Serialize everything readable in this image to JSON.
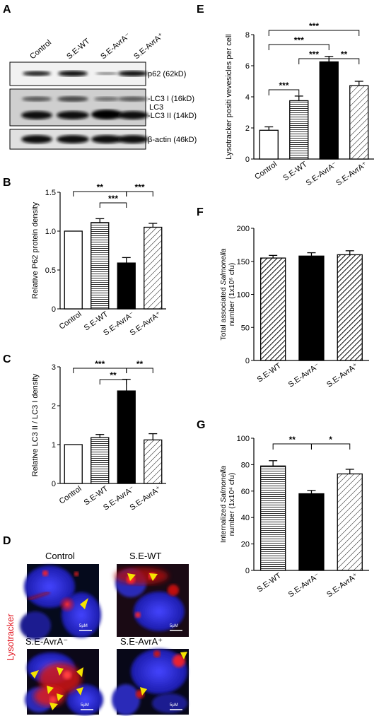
{
  "panels": {
    "A": "A",
    "B": "B",
    "C": "C",
    "D": "D",
    "E": "E",
    "F": "F",
    "G": "G"
  },
  "blot": {
    "lanes": [
      "Control",
      "S.E-WT",
      "S.E-AvrA⁻",
      "S.E-AvrA⁺"
    ],
    "p62": "p62 (62kD)",
    "lc3_i": "-LC3 I (16kD)",
    "lc3": "LC3",
    "lc3_ii": "-LC3 II (14kD)",
    "actin": "β-actin (46kD)"
  },
  "microscopy": {
    "side_label": "Lysotracker",
    "titles": [
      "Control",
      "S.E-WT",
      "S.E-AvrA⁻",
      "S.E-AvrA⁺"
    ],
    "scale": "5μM"
  },
  "chart_data": [
    {
      "id": "B",
      "type": "bar",
      "categories": [
        "Control",
        "S.E-WT",
        "S.E-AvrA⁻",
        "S.E-AvrA⁺"
      ],
      "values": [
        1.0,
        1.11,
        0.59,
        1.05
      ],
      "errors": [
        0,
        0.05,
        0.07,
        0.05
      ],
      "ylabel": "Relative P62 protein density",
      "ylim": [
        0,
        1.5
      ],
      "yticks": [
        "0",
        "0.5",
        "1.0",
        "1.5"
      ],
      "sig": [
        {
          "label": "**",
          "from": 0,
          "to": 2
        },
        {
          "label": "***",
          "from": 1,
          "to": 2
        },
        {
          "label": "***",
          "from": 2,
          "to": 3
        }
      ]
    },
    {
      "id": "C",
      "type": "bar",
      "categories": [
        "Control",
        "S.E-WT",
        "S.E-AvrA⁻",
        "S.E-AvrA⁺"
      ],
      "values": [
        1.0,
        1.18,
        2.38,
        1.12
      ],
      "errors": [
        0,
        0.08,
        0.3,
        0.16
      ],
      "ylabel": "Relative LC3 II / LC3 I density",
      "ylim": [
        0,
        3
      ],
      "yticks": [
        "0",
        "1",
        "2",
        "3"
      ],
      "sig": [
        {
          "label": "***",
          "from": 0,
          "to": 2
        },
        {
          "label": "**",
          "from": 1,
          "to": 2
        },
        {
          "label": "**",
          "from": 2,
          "to": 3
        }
      ]
    },
    {
      "id": "E",
      "type": "bar",
      "categories": [
        "Control",
        "S.E-WT",
        "S.E-AvrA⁻",
        "S.E-AvrA⁺"
      ],
      "values": [
        1.85,
        3.75,
        6.25,
        4.72
      ],
      "errors": [
        0.22,
        0.3,
        0.35,
        0.28
      ],
      "ylabel": "Lysotracker positi vevesicles per cell",
      "ylim": [
        0,
        8
      ],
      "yticks": [
        "0",
        "2",
        "4",
        "6",
        "8"
      ],
      "sig": [
        {
          "label": "***",
          "from": 0,
          "to": 1
        },
        {
          "label": "***",
          "from": 0,
          "to": 2
        },
        {
          "label": "***",
          "from": 0,
          "to": 3
        },
        {
          "label": "***",
          "from": 1,
          "to": 2
        },
        {
          "label": "**",
          "from": 2,
          "to": 3
        }
      ]
    },
    {
      "id": "F",
      "type": "bar",
      "categories": [
        "S.E-WT",
        "S.E-AvrA⁻",
        "S.E-AvrA⁺"
      ],
      "values": [
        155,
        158,
        160
      ],
      "errors": [
        4,
        5,
        6
      ],
      "ylabel_pre": "Total associated ",
      "ylabel_em": "Salmonella",
      "ylabel2": "number (1x10⁵ cfu)",
      "ylim": [
        0,
        200
      ],
      "yticks": [
        "0",
        "50",
        "100",
        "150",
        "200"
      ],
      "sig": []
    },
    {
      "id": "G",
      "type": "bar",
      "categories": [
        "S.E-WT",
        "S.E-AvrA⁻",
        "S.E-AvrA⁺"
      ],
      "values": [
        79,
        58,
        73
      ],
      "errors": [
        4,
        2.5,
        3.5
      ],
      "ylabel_pre": "Internalized ",
      "ylabel_em": "Salmonella",
      "ylabel2": "number (1x10⁴ cfu)",
      "ylim": [
        0,
        100
      ],
      "yticks": [
        "0",
        "20",
        "40",
        "60",
        "80",
        "100"
      ],
      "sig": [
        {
          "label": "**",
          "from": 0,
          "to": 1
        },
        {
          "label": "*",
          "from": 1,
          "to": 2
        }
      ]
    }
  ]
}
